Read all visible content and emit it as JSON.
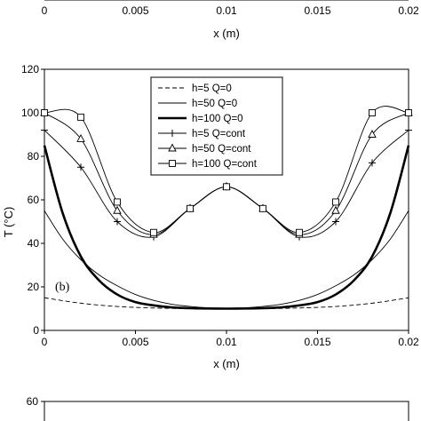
{
  "top_fragment": {
    "ticks": [
      "0",
      "0.005",
      "0.01",
      "0.015",
      "0.02"
    ],
    "xlabel": "x (m)"
  },
  "bottom_fragment": {
    "ytick": "60"
  },
  "chart_data": {
    "type": "line",
    "panel_label": "(b)",
    "xlabel": "x (m)",
    "ylabel": "T (°C)",
    "xlim": [
      0,
      0.02
    ],
    "ylim": [
      0,
      120
    ],
    "xticks": [
      0,
      0.005,
      0.01,
      0.015,
      0.02
    ],
    "xtick_labels": [
      "0",
      "0.005",
      "0.01",
      "0.015",
      "0.02"
    ],
    "yticks": [
      0,
      20,
      40,
      60,
      80,
      100,
      120
    ],
    "ytick_labels": [
      "0",
      "20",
      "40",
      "60",
      "80",
      "100",
      "120"
    ],
    "grid": false,
    "legend_position": "top-center",
    "series": [
      {
        "name": "h=5 Q=0",
        "style": "dashed",
        "marker": "none",
        "x": [
          0,
          0.002,
          0.004,
          0.006,
          0.008,
          0.01,
          0.012,
          0.014,
          0.016,
          0.018,
          0.02
        ],
        "y": [
          15,
          12.5,
          11,
          10.3,
          10,
          10,
          10,
          10.3,
          11,
          12.5,
          15
        ]
      },
      {
        "name": "h=50 Q=0",
        "style": "thin",
        "marker": "none",
        "x": [
          0,
          0.001,
          0.002,
          0.003,
          0.004,
          0.005,
          0.006,
          0.007,
          0.008,
          0.009,
          0.01,
          0.011,
          0.012,
          0.013,
          0.014,
          0.015,
          0.016,
          0.017,
          0.018,
          0.019,
          0.02
        ],
        "y": [
          55,
          42,
          32.5,
          25.5,
          20.5,
          16.5,
          13.8,
          12,
          11,
          10.4,
          10.2,
          10.4,
          11,
          12,
          13.8,
          16.5,
          20.5,
          25.5,
          32.5,
          42,
          55
        ]
      },
      {
        "name": "h=100 Q=0",
        "style": "thick",
        "marker": "none",
        "x": [
          0,
          0.001,
          0.002,
          0.003,
          0.004,
          0.005,
          0.006,
          0.007,
          0.008,
          0.009,
          0.01,
          0.011,
          0.012,
          0.013,
          0.014,
          0.015,
          0.016,
          0.017,
          0.018,
          0.019,
          0.02
        ],
        "y": [
          85,
          54,
          34,
          23,
          16.5,
          13,
          11.5,
          10.6,
          10.2,
          10.05,
          10,
          10.05,
          10.2,
          10.6,
          11.5,
          13,
          16.5,
          23,
          34,
          54,
          85
        ]
      },
      {
        "name": "h=5 Q=cont",
        "style": "thin",
        "marker": "plus",
        "x": [
          0,
          0.002,
          0.004,
          0.006,
          0.008,
          0.01,
          0.012,
          0.014,
          0.016,
          0.018,
          0.02
        ],
        "y": [
          92,
          75,
          50,
          43,
          56,
          66,
          56,
          43,
          50,
          77,
          92
        ]
      },
      {
        "name": "h=50 Q=cont",
        "style": "thin",
        "marker": "triangle",
        "x": [
          0,
          0.002,
          0.004,
          0.006,
          0.008,
          0.01,
          0.012,
          0.014,
          0.016,
          0.018,
          0.02
        ],
        "y": [
          100,
          88,
          55,
          44,
          56,
          66,
          56,
          44,
          55,
          90,
          100
        ]
      },
      {
        "name": "h=100 Q=cont",
        "style": "thin",
        "marker": "square",
        "x": [
          0,
          0.002,
          0.004,
          0.006,
          0.008,
          0.01,
          0.012,
          0.014,
          0.016,
          0.018,
          0.02
        ],
        "y": [
          100,
          98,
          59,
          45,
          56,
          66,
          56,
          45,
          59,
          100,
          100
        ]
      }
    ]
  }
}
